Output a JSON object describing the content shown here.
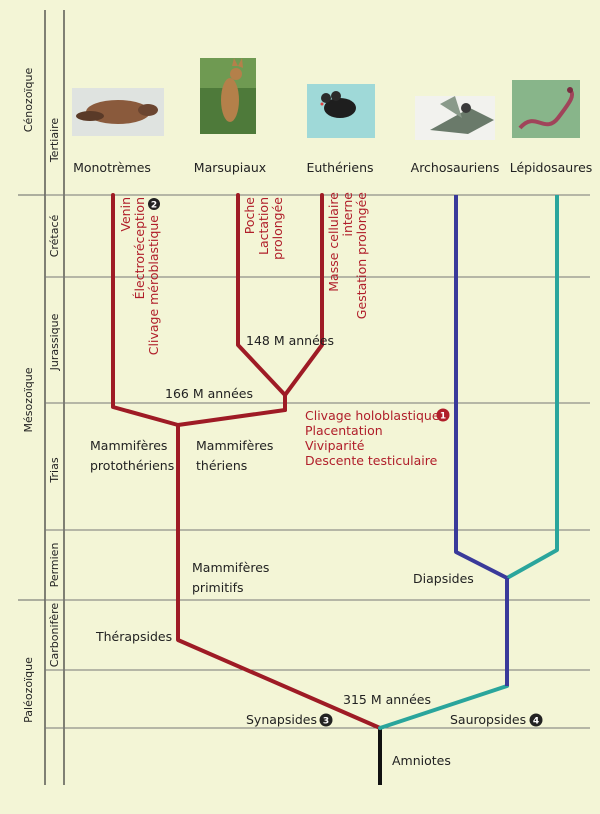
{
  "eras": {
    "cenozoique": "Cénozoïque",
    "mesozoique": "Mésozoïque",
    "paleozoique": "Paléozoïque"
  },
  "periods": {
    "tertiaire": "Tertiaire",
    "cretace": "Crétacé",
    "jurassique": "Jurassique",
    "trias": "Trias",
    "permien": "Permien",
    "carbonifere": "Carbonifère"
  },
  "taxa": {
    "monotremes": "Monotrèmes",
    "marsupiaux": "Marsupiaux",
    "eutheriens": "Euthériens",
    "archosauriens": "Archosauriens",
    "lepidosaures": "Lépidosaures"
  },
  "traits": {
    "monotremes": [
      "Venin",
      "Électroréception",
      "Clivage méroblastique"
    ],
    "monotremes_marker": "2",
    "marsupiaux": [
      "Poche",
      "Lactation",
      "prolongée"
    ],
    "eutheriens": [
      "Masse cellulaire",
      "interne",
      "Gestation prolongée"
    ],
    "theriens": [
      "Clivage holoblastique",
      "Placentation",
      "Viviparité",
      "Descente testiculaire"
    ],
    "theriens_marker": "1"
  },
  "dates": {
    "d148": "148 M années",
    "d166": "166 M années",
    "d315": "315 M années"
  },
  "groups": {
    "prototheriens_1": "Mammifères",
    "prototheriens_2": "protothériens",
    "theriens_1": "Mammifères",
    "theriens_2": "thériens",
    "primitifs_1": "Mammifères",
    "primitifs_2": "primitifs",
    "therapsides": "Thérapsides",
    "diapsides": "Diapsides",
    "synapsides": "Synapsides",
    "synapsides_marker": "3",
    "sauropsides": "Sauropsides",
    "sauropsides_marker": "4",
    "amniotes": "Amniotes"
  },
  "colors": {
    "background": "#f3f5d6",
    "synapsid_branch": "#9e1b25",
    "archosaur_branch": "#3a3a9a",
    "lepidosaur_branch": "#2aa59c",
    "root": "#111111",
    "trait_text": "#b01e2a"
  },
  "icons": [
    "platypus-photo",
    "kangaroo-photo",
    "mouse-photo",
    "bird-photo",
    "snake-photo"
  ]
}
